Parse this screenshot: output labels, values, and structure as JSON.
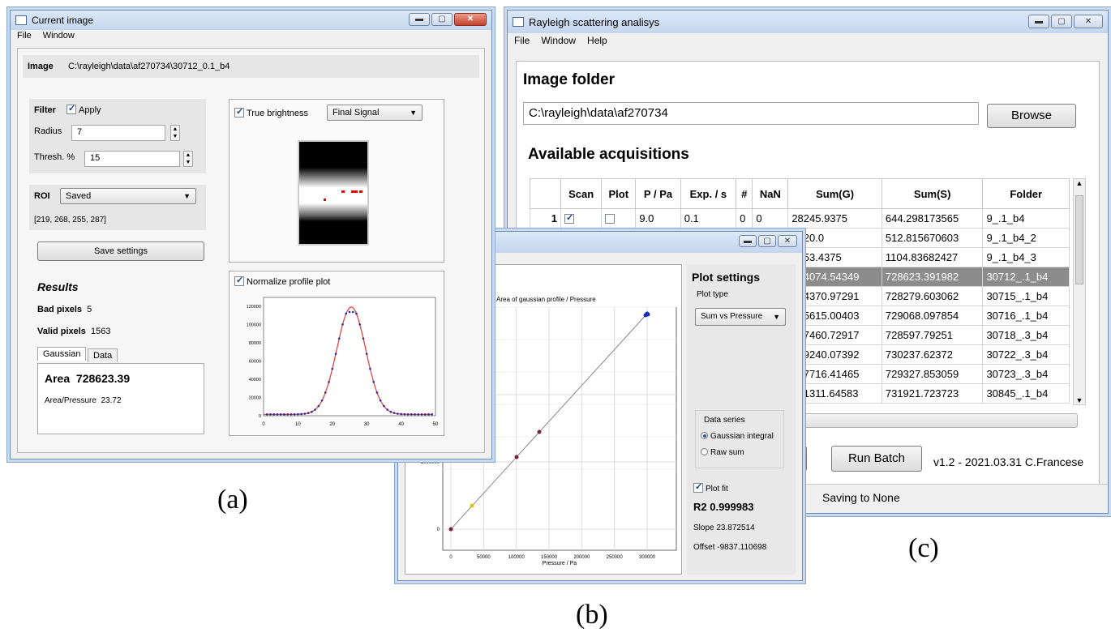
{
  "win_a": {
    "title": "Current image",
    "menu": [
      "File",
      "Window"
    ],
    "image_label": "Image",
    "image_path": "C:\\rayleigh\\data\\af270734\\30712_0.1_b4",
    "filter_label": "Filter",
    "apply_label": "Apply",
    "radius_label": "Radius",
    "radius_value": "7",
    "thresh_label": "Thresh. %",
    "thresh_value": "15",
    "roi_label": "ROI",
    "roi_value": "Saved",
    "roi_coords": "[219, 268, 255, 287]",
    "save_button": "Save settings",
    "results_title": "Results",
    "bad_pixels_label": "Bad pixels",
    "bad_pixels_value": "5",
    "valid_pixels_label": "Valid pixels",
    "valid_pixels_value": "1563",
    "tabs": [
      "Gaussian",
      "Data"
    ],
    "area_label": "Area",
    "area_value": "728623.39",
    "area_pressure_label": "Area/Pressure",
    "area_pressure_value": "23.72",
    "true_brightness_label": "True brightness",
    "signal_select": "Final Signal",
    "normalize_label": "Normalize profile plot",
    "profile_plot": {
      "yticks": [
        "0",
        "20000",
        "40000",
        "60000",
        "80000",
        "100000",
        "120000"
      ],
      "xticks": [
        "0",
        "10",
        "20",
        "30",
        "40",
        "50"
      ]
    }
  },
  "win_b": {
    "plot_title": "Area of gaussian profile / Pressure",
    "xlabel": "Pressure / Pa",
    "yticks": [
      "0",
      "1000000",
      "2000000"
    ],
    "xticks": [
      "0",
      "50000",
      "100000",
      "150000",
      "200000",
      "250000",
      "300000"
    ],
    "settings_title": "Plot settings",
    "plot_type_label": "Plot type",
    "plot_type_value": "Sum vs Pressure",
    "data_series_label": "Data series",
    "series_options": [
      "Gaussian integral",
      "Raw sum"
    ],
    "plot_fit_label": "Plot fit",
    "r2": "R2 0.999983",
    "slope": "Slope  23.872514",
    "offset": "Offset -9837.110698"
  },
  "win_c": {
    "title": "Rayleigh scattering analisys",
    "menu": [
      "File",
      "Window",
      "Help"
    ],
    "image_folder_title": "Image folder",
    "folder_path": "C:\\rayleigh\\data\\af270734",
    "browse_button": "Browse",
    "acq_title": "Available acquisitions",
    "columns": [
      "Scan",
      "Plot",
      "P / Pa",
      "Exp. / s",
      "#",
      "NaN",
      "Sum(G)",
      "Sum(S)",
      "Folder"
    ],
    "first_row": {
      "index": "1",
      "p": "9.0",
      "exp": "0.1",
      "n": "0",
      "nan": "0",
      "sumg": "28245.9375",
      "sums": "644.298173565",
      "folder": "9_.1_b4"
    },
    "rows": [
      {
        "sumg": "7620.0",
        "sums": "512.815670603",
        "folder": "9_.1_b4_2"
      },
      {
        "sumg": "7653.4375",
        "sums": "1104.83682427",
        "folder": "9_.1_b4_3"
      },
      {
        "sumg": "344074.54349",
        "sums": "728623.391982",
        "folder": "30712_.1_b4"
      },
      {
        "sumg": "344370.97291",
        "sums": "728279.603062",
        "folder": "30715_.1_b4"
      },
      {
        "sumg": "345615.00403",
        "sums": "729068.097854",
        "folder": "30716_.1_b4"
      },
      {
        "sumg": "347460.72917",
        "sums": "728597.79251",
        "folder": "30718_.3_b4"
      },
      {
        "sumg": "349240.07392",
        "sums": "730237.62372",
        "folder": "30722_.3_b4"
      },
      {
        "sumg": "347716.41465",
        "sums": "729327.853059",
        "folder": "30723_.3_b4"
      },
      {
        "sumg": "351311.64583",
        "sums": "731921.723723",
        "folder": "30845_.1_b4"
      }
    ],
    "run_batch": "Run Batch",
    "version": "v1.2 - 2021.03.31 C.Francese",
    "status": "Saving to None"
  },
  "captions": {
    "a": "(a)",
    "b": "(b)",
    "c": "(c)"
  }
}
